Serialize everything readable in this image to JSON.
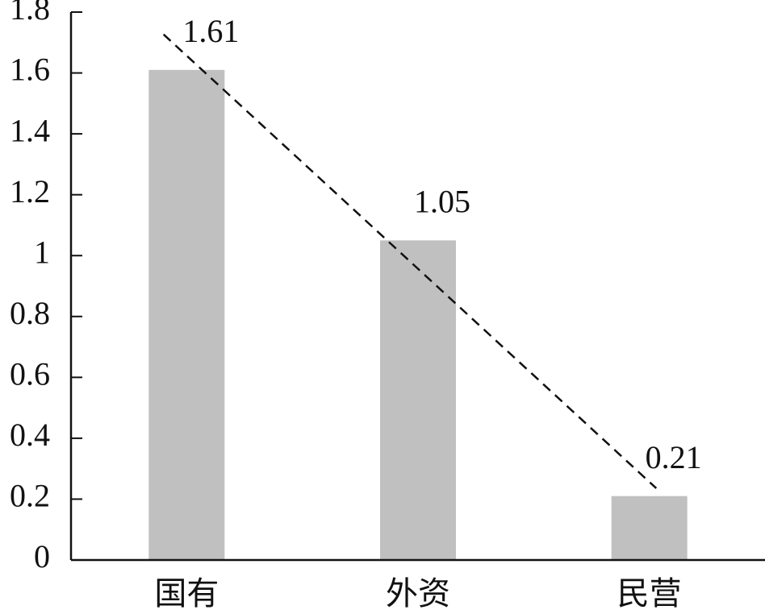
{
  "chart_data": {
    "type": "bar",
    "categories": [
      "国有",
      "外资",
      "民营"
    ],
    "values": [
      1.61,
      1.05,
      0.21
    ],
    "color": "#c0c0c0",
    "ylim": [
      0,
      1.8
    ],
    "yticks": [
      0,
      0.2,
      0.4,
      0.6,
      0.8,
      1,
      1.2,
      1.4,
      1.6,
      1.8
    ],
    "trendline": true
  }
}
